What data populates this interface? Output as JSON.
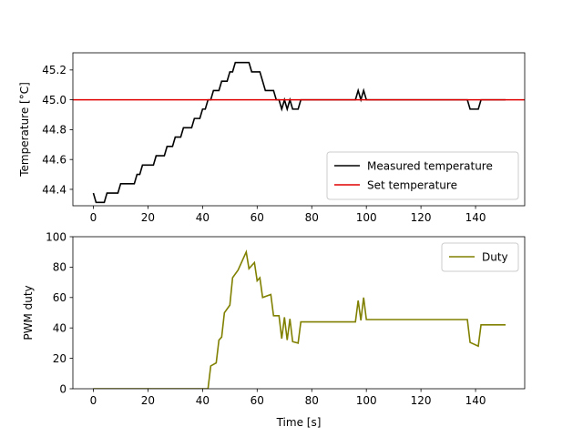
{
  "chart_data": [
    {
      "type": "line",
      "title": "",
      "xlabel": "",
      "ylabel": "Temperature [°C]",
      "xlim": [
        -7.5,
        158
      ],
      "ylim": [
        44.29,
        45.315
      ],
      "xticks": [
        0,
        20,
        40,
        60,
        80,
        100,
        120,
        140
      ],
      "xtick_labels": [
        "0",
        "20",
        "40",
        "60",
        "80",
        "100",
        "120",
        "140"
      ],
      "yticks": [
        44.4,
        44.6,
        44.8,
        45.0,
        45.2
      ],
      "ytick_labels": [
        "44.4",
        "44.6",
        "44.8",
        "45.0",
        "45.2"
      ],
      "legend_position": "lower-right",
      "series": [
        {
          "name": "Measured temperature",
          "color": "#000000",
          "points": [
            [
              0,
              44.375
            ],
            [
              1,
              44.3125
            ],
            [
              4,
              44.3125
            ],
            [
              5,
              44.375
            ],
            [
              9,
              44.375
            ],
            [
              10,
              44.4375
            ],
            [
              15,
              44.4375
            ],
            [
              16,
              44.5
            ],
            [
              17,
              44.5
            ],
            [
              18,
              44.5625
            ],
            [
              22,
              44.5625
            ],
            [
              23,
              44.625
            ],
            [
              26,
              44.625
            ],
            [
              27,
              44.6875
            ],
            [
              29,
              44.6875
            ],
            [
              30,
              44.75
            ],
            [
              32,
              44.75
            ],
            [
              33,
              44.8125
            ],
            [
              36,
              44.8125
            ],
            [
              37,
              44.875
            ],
            [
              39,
              44.875
            ],
            [
              40,
              44.9375
            ],
            [
              41,
              44.9375
            ],
            [
              42,
              45.0
            ],
            [
              43,
              45.0
            ],
            [
              44,
              45.0625
            ],
            [
              46,
              45.0625
            ],
            [
              47,
              45.125
            ],
            [
              49,
              45.125
            ],
            [
              50,
              45.1875
            ],
            [
              51,
              45.1875
            ],
            [
              52,
              45.25
            ],
            [
              57,
              45.25
            ],
            [
              58,
              45.1875
            ],
            [
              61,
              45.1875
            ],
            [
              62,
              45.125
            ],
            [
              63,
              45.0625
            ],
            [
              66,
              45.0625
            ],
            [
              67,
              45.0
            ],
            [
              68,
              45.0
            ],
            [
              69,
              44.9375
            ],
            [
              70,
              45.0
            ],
            [
              71,
              44.9375
            ],
            [
              72,
              45.0
            ],
            [
              73,
              44.9375
            ],
            [
              75,
              44.9375
            ],
            [
              76,
              45.0
            ],
            [
              96,
              45.0
            ],
            [
              97,
              45.0625
            ],
            [
              98,
              45.0
            ],
            [
              99,
              45.0625
            ],
            [
              100,
              45.0
            ],
            [
              137,
              45.0
            ],
            [
              138,
              44.9375
            ],
            [
              141,
              44.9375
            ],
            [
              142,
              45.0
            ],
            [
              151,
              45.0
            ]
          ]
        },
        {
          "name": "Set temperature",
          "color": "#e00000",
          "points": [
            [
              -7.5,
              45.0
            ],
            [
              158,
              45.0
            ]
          ]
        }
      ]
    },
    {
      "type": "line",
      "title": "",
      "xlabel": "Time [s]",
      "ylabel": "PWM duty",
      "xlim": [
        -7.5,
        158
      ],
      "ylim": [
        0,
        100
      ],
      "xticks": [
        0,
        20,
        40,
        60,
        80,
        100,
        120,
        140
      ],
      "xtick_labels": [
        "0",
        "20",
        "40",
        "60",
        "80",
        "100",
        "120",
        "140"
      ],
      "yticks": [
        0,
        20,
        40,
        60,
        80,
        100
      ],
      "ytick_labels": [
        "0",
        "20",
        "40",
        "60",
        "80",
        "100"
      ],
      "legend_position": "upper-right",
      "series": [
        {
          "name": "Duty",
          "color": "#808000",
          "points": [
            [
              0,
              0
            ],
            [
              42,
              0
            ],
            [
              43,
              15
            ],
            [
              45,
              17
            ],
            [
              46,
              32
            ],
            [
              47,
              34
            ],
            [
              48,
              50
            ],
            [
              50,
              55
            ],
            [
              51,
              73
            ],
            [
              53,
              78
            ],
            [
              56,
              90
            ],
            [
              57,
              79
            ],
            [
              59,
              83
            ],
            [
              60,
              71
            ],
            [
              61,
              73
            ],
            [
              62,
              60
            ],
            [
              65,
              62
            ],
            [
              66,
              48
            ],
            [
              68,
              48
            ],
            [
              69,
              33
            ],
            [
              70,
              47
            ],
            [
              71,
              32
            ],
            [
              72,
              46
            ],
            [
              73,
              31
            ],
            [
              75,
              30
            ],
            [
              76,
              44
            ],
            [
              96,
              44
            ],
            [
              97,
              58
            ],
            [
              98,
              45
            ],
            [
              99,
              60
            ],
            [
              100,
              45.5
            ],
            [
              137,
              45.5
            ],
            [
              138,
              30.5
            ],
            [
              141,
              28
            ],
            [
              142,
              42
            ],
            [
              151,
              42
            ]
          ]
        }
      ]
    }
  ]
}
